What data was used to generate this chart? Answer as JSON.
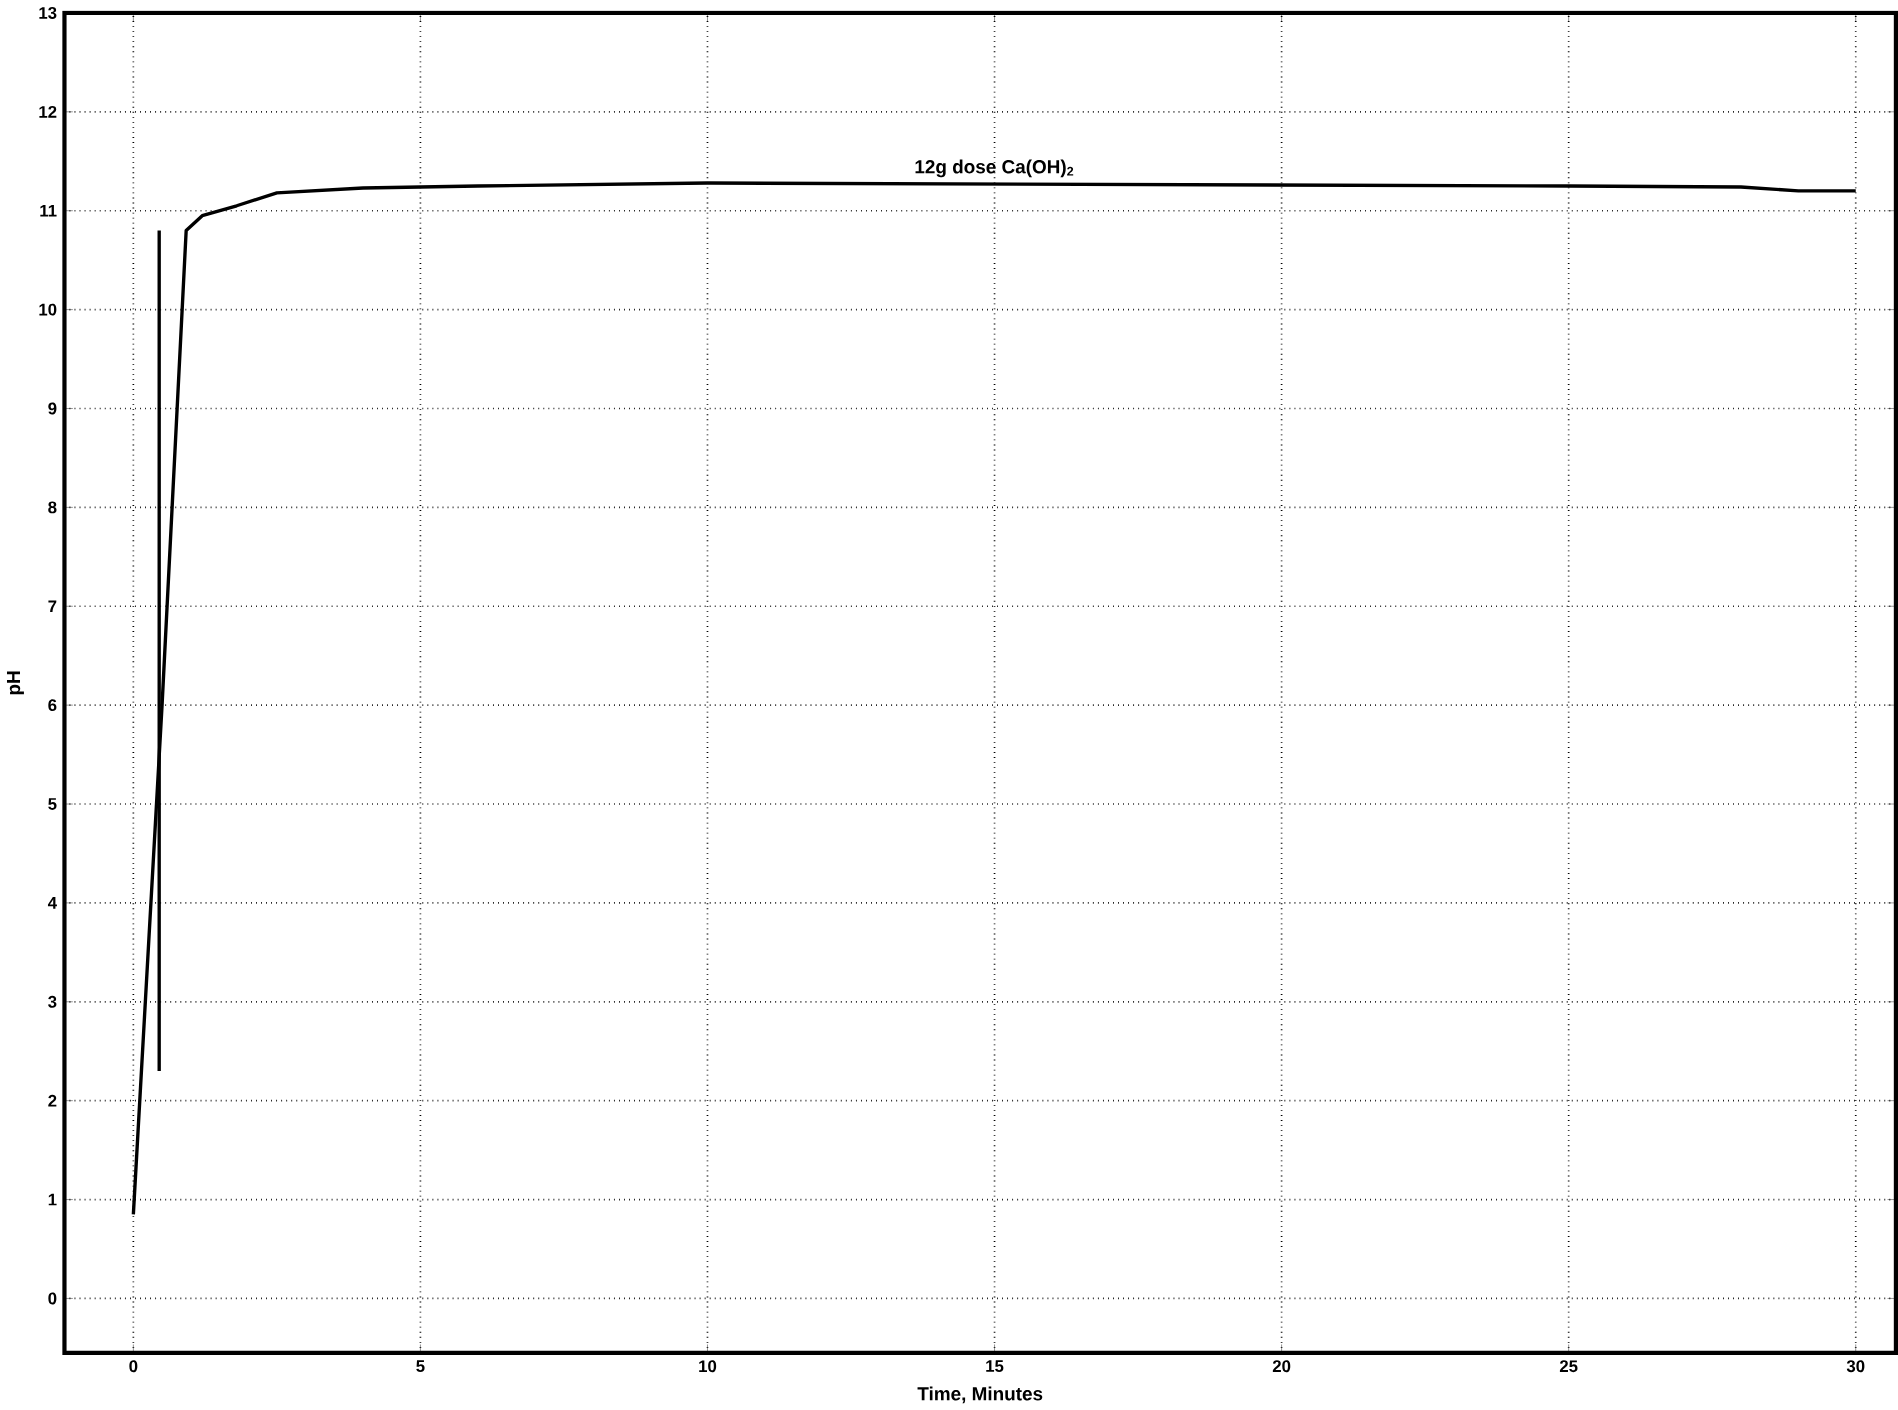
{
  "chart_data": {
    "type": "line",
    "xlabel": "Time,  Minutes",
    "ylabel": "pH",
    "xlim": [
      -1.2,
      30.7
    ],
    "ylim": [
      -0.55,
      13
    ],
    "xticks": [
      0,
      5,
      10,
      15,
      20,
      25,
      30
    ],
    "yticks": [
      0,
      1,
      2,
      3,
      4,
      5,
      6,
      7,
      8,
      9,
      10,
      11,
      12,
      13
    ],
    "grid": true,
    "line_style": "solid",
    "marker": "none",
    "series": [
      {
        "color": "#000000",
        "x": [
          0,
          0.5,
          0.92,
          1.2,
          1.8,
          2.5,
          4,
          6,
          10,
          15,
          20,
          25,
          28,
          29,
          30
        ],
        "values": [
          0.85,
          6.0,
          10.8,
          10.95,
          11.05,
          11.18,
          11.23,
          11.25,
          11.28,
          11.27,
          11.26,
          11.25,
          11.24,
          11.2,
          11.2
        ]
      },
      {
        "color": "#000000",
        "x": [
          0.45,
          0.45
        ],
        "values": [
          2.3,
          10.8
        ]
      }
    ],
    "annotations": [
      {
        "text": "12g dose Ca(OH)$_{2}$",
        "x": 15,
        "y": 11.27
      }
    ]
  }
}
